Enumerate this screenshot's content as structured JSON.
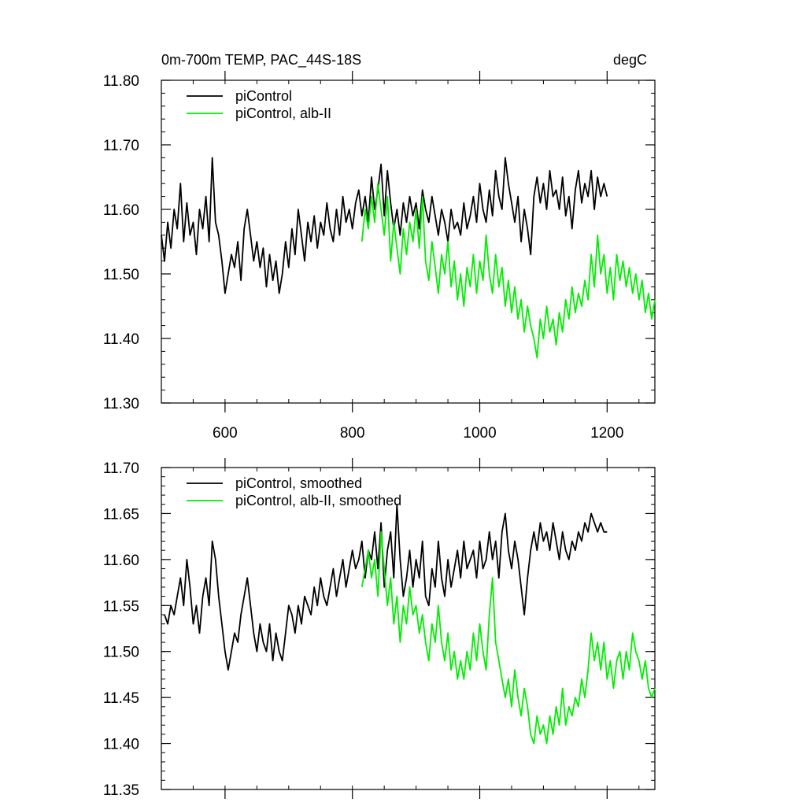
{
  "chart_data": [
    {
      "type": "line",
      "title": "0m-700m TEMP, PAC_44S-18S",
      "units": "degC",
      "xlabel": "",
      "ylabel": "",
      "xlim": [
        500,
        1275
      ],
      "ylim": [
        11.3,
        11.8
      ],
      "xticks": [
        600,
        800,
        1000,
        1200
      ],
      "yticks": [
        11.3,
        11.4,
        11.5,
        11.6,
        11.7,
        11.8
      ],
      "xtick_labels": [
        "600",
        "800",
        "1000",
        "1200"
      ],
      "ytick_labels": [
        "11.30",
        "11.40",
        "11.50",
        "11.60",
        "11.70",
        "11.80"
      ],
      "legend_position": "top-left",
      "series": [
        {
          "name": "piControl",
          "color": "#000000",
          "x": [
            500,
            505,
            510,
            515,
            520,
            525,
            530,
            535,
            540,
            545,
            550,
            555,
            560,
            565,
            570,
            575,
            580,
            585,
            590,
            595,
            600,
            605,
            610,
            615,
            620,
            625,
            630,
            635,
            640,
            645,
            650,
            655,
            660,
            665,
            670,
            675,
            680,
            685,
            690,
            695,
            700,
            705,
            710,
            715,
            720,
            725,
            730,
            735,
            740,
            745,
            750,
            755,
            760,
            765,
            770,
            775,
            780,
            785,
            790,
            795,
            800,
            805,
            810,
            815,
            820,
            825,
            830,
            835,
            840,
            845,
            850,
            855,
            860,
            865,
            870,
            875,
            880,
            885,
            890,
            895,
            900,
            905,
            910,
            915,
            920,
            925,
            930,
            935,
            940,
            945,
            950,
            955,
            960,
            965,
            970,
            975,
            980,
            985,
            990,
            995,
            1000,
            1005,
            1010,
            1015,
            1020,
            1025,
            1030,
            1035,
            1040,
            1045,
            1050,
            1055,
            1060,
            1065,
            1070,
            1075,
            1080,
            1085,
            1090,
            1095,
            1100,
            1105,
            1110,
            1115,
            1120,
            1125,
            1130,
            1135,
            1140,
            1145,
            1150,
            1155,
            1160,
            1165,
            1170,
            1175,
            1180,
            1185,
            1190,
            1195,
            1200
          ],
          "values": [
            11.56,
            11.52,
            11.58,
            11.54,
            11.6,
            11.57,
            11.64,
            11.55,
            11.61,
            11.56,
            11.58,
            11.53,
            11.6,
            11.57,
            11.62,
            11.55,
            11.68,
            11.58,
            11.56,
            11.52,
            11.47,
            11.5,
            11.53,
            11.51,
            11.55,
            11.49,
            11.57,
            11.6,
            11.56,
            11.52,
            11.55,
            11.51,
            11.54,
            11.48,
            11.53,
            11.49,
            11.52,
            11.47,
            11.5,
            11.55,
            11.51,
            11.57,
            11.53,
            11.6,
            11.56,
            11.52,
            11.58,
            11.55,
            11.59,
            11.54,
            11.58,
            11.56,
            11.61,
            11.57,
            11.55,
            11.6,
            11.56,
            11.62,
            11.58,
            11.6,
            11.57,
            11.61,
            11.63,
            11.59,
            11.62,
            11.58,
            11.65,
            11.6,
            11.63,
            11.67,
            11.59,
            11.66,
            11.61,
            11.57,
            11.6,
            11.56,
            11.61,
            11.58,
            11.62,
            11.59,
            11.61,
            11.57,
            11.63,
            11.6,
            11.58,
            11.62,
            11.59,
            11.56,
            11.6,
            11.58,
            11.55,
            11.6,
            11.57,
            11.58,
            11.56,
            11.61,
            11.57,
            11.59,
            11.62,
            11.58,
            11.64,
            11.6,
            11.58,
            11.63,
            11.59,
            11.66,
            11.62,
            11.6,
            11.68,
            11.64,
            11.61,
            11.58,
            11.62,
            11.55,
            11.6,
            11.57,
            11.53,
            11.62,
            11.65,
            11.61,
            11.64,
            11.6,
            11.66,
            11.62,
            11.63,
            11.6,
            11.65,
            11.59,
            11.62,
            11.57,
            11.63,
            11.66,
            11.61,
            11.64,
            11.62,
            11.66,
            11.6,
            11.65,
            11.62,
            11.64,
            11.62
          ]
        },
        {
          "name": "piControl, alb-II",
          "color": "#00ee00",
          "x": [
            815,
            820,
            825,
            830,
            835,
            840,
            845,
            850,
            855,
            860,
            865,
            870,
            875,
            880,
            885,
            890,
            895,
            900,
            905,
            910,
            915,
            920,
            925,
            930,
            935,
            940,
            945,
            950,
            955,
            960,
            965,
            970,
            975,
            980,
            985,
            990,
            995,
            1000,
            1005,
            1010,
            1015,
            1020,
            1025,
            1030,
            1035,
            1040,
            1045,
            1050,
            1055,
            1060,
            1065,
            1070,
            1075,
            1080,
            1085,
            1090,
            1095,
            1100,
            1105,
            1110,
            1115,
            1120,
            1125,
            1130,
            1135,
            1140,
            1145,
            1150,
            1155,
            1160,
            1165,
            1170,
            1175,
            1180,
            1185,
            1190,
            1195,
            1200,
            1205,
            1210,
            1215,
            1220,
            1225,
            1230,
            1235,
            1240,
            1245,
            1250,
            1255,
            1260,
            1265,
            1270,
            1275
          ],
          "values": [
            11.55,
            11.6,
            11.57,
            11.62,
            11.58,
            11.64,
            11.6,
            11.56,
            11.62,
            11.52,
            11.58,
            11.54,
            11.5,
            11.57,
            11.53,
            11.58,
            11.55,
            11.6,
            11.54,
            11.62,
            11.52,
            11.49,
            11.55,
            11.51,
            11.47,
            11.53,
            11.5,
            11.55,
            11.48,
            11.52,
            11.46,
            11.5,
            11.45,
            11.51,
            11.48,
            11.53,
            11.47,
            11.52,
            11.49,
            11.56,
            11.5,
            11.47,
            11.53,
            11.48,
            11.51,
            11.45,
            11.49,
            11.44,
            11.48,
            11.43,
            11.46,
            11.41,
            11.45,
            11.42,
            11.4,
            11.37,
            11.43,
            11.4,
            11.45,
            11.41,
            11.43,
            11.39,
            11.44,
            11.41,
            11.46,
            11.43,
            11.48,
            11.44,
            11.47,
            11.45,
            11.49,
            11.46,
            11.53,
            11.48,
            11.56,
            11.5,
            11.53,
            11.47,
            11.51,
            11.46,
            11.53,
            11.49,
            11.52,
            11.48,
            11.51,
            11.47,
            11.5,
            11.46,
            11.49,
            11.44,
            11.47,
            11.43,
            11.46
          ]
        }
      ]
    },
    {
      "type": "line",
      "title": "",
      "units": "",
      "xlabel": "",
      "ylabel": "",
      "xlim": [
        500,
        1275
      ],
      "ylim": [
        11.35,
        11.7
      ],
      "xticks": [
        600,
        800,
        1000,
        1200
      ],
      "yticks": [
        11.35,
        11.4,
        11.45,
        11.5,
        11.55,
        11.6,
        11.65,
        11.7
      ],
      "xtick_labels": [],
      "ytick_labels": [
        "11.35",
        "11.40",
        "11.45",
        "11.50",
        "11.55",
        "11.60",
        "11.65",
        "11.70"
      ],
      "legend_position": "top-left",
      "series": [
        {
          "name": "piControl, smoothed",
          "color": "#000000",
          "x": [
            505,
            510,
            515,
            520,
            525,
            530,
            535,
            540,
            545,
            550,
            555,
            560,
            565,
            570,
            575,
            580,
            585,
            590,
            595,
            600,
            605,
            610,
            615,
            620,
            625,
            630,
            635,
            640,
            645,
            650,
            655,
            660,
            665,
            670,
            675,
            680,
            685,
            690,
            695,
            700,
            705,
            710,
            715,
            720,
            725,
            730,
            735,
            740,
            745,
            750,
            755,
            760,
            765,
            770,
            775,
            780,
            785,
            790,
            795,
            800,
            805,
            810,
            815,
            820,
            825,
            830,
            835,
            840,
            845,
            850,
            855,
            860,
            865,
            870,
            875,
            880,
            885,
            890,
            895,
            900,
            905,
            910,
            915,
            920,
            925,
            930,
            935,
            940,
            945,
            950,
            955,
            960,
            965,
            970,
            975,
            980,
            985,
            990,
            995,
            1000,
            1005,
            1010,
            1015,
            1020,
            1025,
            1030,
            1035,
            1040,
            1045,
            1050,
            1055,
            1060,
            1065,
            1070,
            1075,
            1080,
            1085,
            1090,
            1095,
            1100,
            1105,
            1110,
            1115,
            1120,
            1125,
            1130,
            1135,
            1140,
            1145,
            1150,
            1155,
            1160,
            1165,
            1170,
            1175,
            1180,
            1185,
            1190,
            1195,
            1200
          ],
          "values": [
            11.54,
            11.53,
            11.55,
            11.54,
            11.56,
            11.58,
            11.55,
            11.6,
            11.57,
            11.53,
            11.55,
            11.52,
            11.56,
            11.58,
            11.55,
            11.62,
            11.6,
            11.56,
            11.53,
            11.5,
            11.48,
            11.5,
            11.52,
            11.51,
            11.54,
            11.56,
            11.58,
            11.55,
            11.52,
            11.5,
            11.53,
            11.51,
            11.5,
            11.53,
            11.49,
            11.52,
            11.5,
            11.49,
            11.52,
            11.55,
            11.54,
            11.52,
            11.55,
            11.53,
            11.56,
            11.55,
            11.54,
            11.57,
            11.55,
            11.58,
            11.56,
            11.55,
            11.57,
            11.59,
            11.56,
            11.58,
            11.6,
            11.57,
            11.59,
            11.61,
            11.59,
            11.6,
            11.62,
            11.58,
            11.61,
            11.6,
            11.63,
            11.59,
            11.64,
            11.57,
            11.61,
            11.63,
            11.58,
            11.66,
            11.6,
            11.56,
            11.58,
            11.61,
            11.57,
            11.6,
            11.58,
            11.62,
            11.56,
            11.55,
            11.59,
            11.57,
            11.62,
            11.58,
            11.56,
            11.6,
            11.57,
            11.59,
            11.61,
            11.58,
            11.62,
            11.59,
            11.6,
            11.61,
            11.58,
            11.62,
            11.59,
            11.6,
            11.63,
            11.6,
            11.62,
            11.58,
            11.63,
            11.65,
            11.61,
            11.59,
            11.62,
            11.6,
            11.57,
            11.54,
            11.58,
            11.61,
            11.63,
            11.61,
            11.64,
            11.62,
            11.63,
            11.61,
            11.64,
            11.62,
            11.6,
            11.63,
            11.61,
            11.6,
            11.62,
            11.61,
            11.63,
            11.62,
            11.64,
            11.63,
            11.65,
            11.64,
            11.63,
            11.64,
            11.63,
            11.63
          ]
        },
        {
          "name": "piControl, alb-II, smoothed",
          "color": "#00ee00",
          "x": [
            815,
            820,
            825,
            830,
            835,
            840,
            845,
            850,
            855,
            860,
            865,
            870,
            875,
            880,
            885,
            890,
            895,
            900,
            905,
            910,
            915,
            920,
            925,
            930,
            935,
            940,
            945,
            950,
            955,
            960,
            965,
            970,
            975,
            980,
            985,
            990,
            995,
            1000,
            1005,
            1010,
            1015,
            1020,
            1025,
            1030,
            1035,
            1040,
            1045,
            1050,
            1055,
            1060,
            1065,
            1070,
            1075,
            1080,
            1085,
            1090,
            1095,
            1100,
            1105,
            1110,
            1115,
            1120,
            1125,
            1130,
            1135,
            1140,
            1145,
            1150,
            1155,
            1160,
            1165,
            1170,
            1175,
            1180,
            1185,
            1190,
            1195,
            1200,
            1205,
            1210,
            1215,
            1220,
            1225,
            1230,
            1235,
            1240,
            1245,
            1250,
            1255,
            1260,
            1265,
            1270,
            1275
          ],
          "values": [
            11.57,
            11.59,
            11.61,
            11.58,
            11.6,
            11.56,
            11.63,
            11.59,
            11.55,
            11.58,
            11.53,
            11.56,
            11.51,
            11.55,
            11.53,
            11.57,
            11.54,
            11.55,
            11.52,
            11.54,
            11.51,
            11.49,
            11.53,
            11.51,
            11.55,
            11.51,
            11.49,
            11.52,
            11.48,
            11.5,
            11.47,
            11.49,
            11.47,
            11.5,
            11.48,
            11.52,
            11.49,
            11.53,
            11.5,
            11.48,
            11.54,
            11.58,
            11.51,
            11.49,
            11.47,
            11.45,
            11.47,
            11.44,
            11.48,
            11.45,
            11.43,
            11.46,
            11.44,
            11.41,
            11.4,
            11.43,
            11.41,
            11.42,
            11.4,
            11.43,
            11.41,
            11.44,
            11.42,
            11.46,
            11.42,
            11.44,
            11.43,
            11.45,
            11.44,
            11.47,
            11.45,
            11.48,
            11.52,
            11.49,
            11.51,
            11.48,
            11.51,
            11.47,
            11.49,
            11.46,
            11.49,
            11.5,
            11.47,
            11.5,
            11.48,
            11.52,
            11.5,
            11.49,
            11.47,
            11.49,
            11.46,
            11.45,
            11.46
          ]
        }
      ]
    }
  ]
}
